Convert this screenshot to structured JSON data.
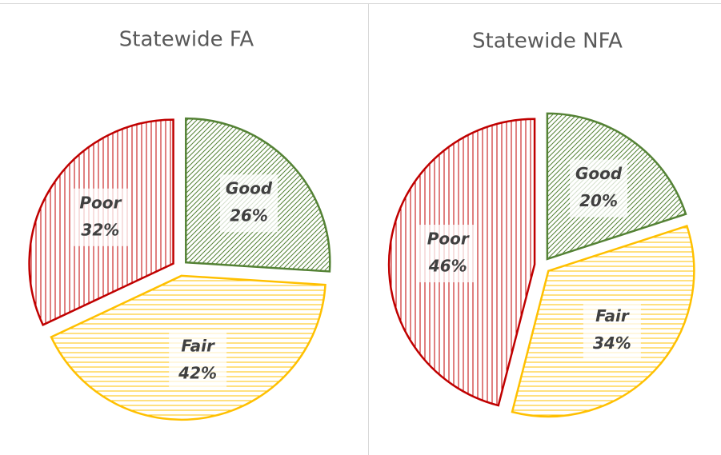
{
  "chart_data": [
    {
      "type": "pie",
      "title": "Statewide FA",
      "categories": [
        "Good",
        "Fair",
        "Poor"
      ],
      "values": [
        26,
        42,
        32
      ],
      "value_labels": [
        "26%",
        "42%",
        "32%"
      ],
      "colors": [
        "#548235",
        "#ffc000",
        "#c00000"
      ]
    },
    {
      "type": "pie",
      "title": "Statewide NFA",
      "categories": [
        "Good",
        "Fair",
        "Poor"
      ],
      "values": [
        20,
        34,
        46
      ],
      "value_labels": [
        "20%",
        "34%",
        "46%"
      ],
      "colors": [
        "#548235",
        "#ffc000",
        "#c00000"
      ]
    }
  ]
}
